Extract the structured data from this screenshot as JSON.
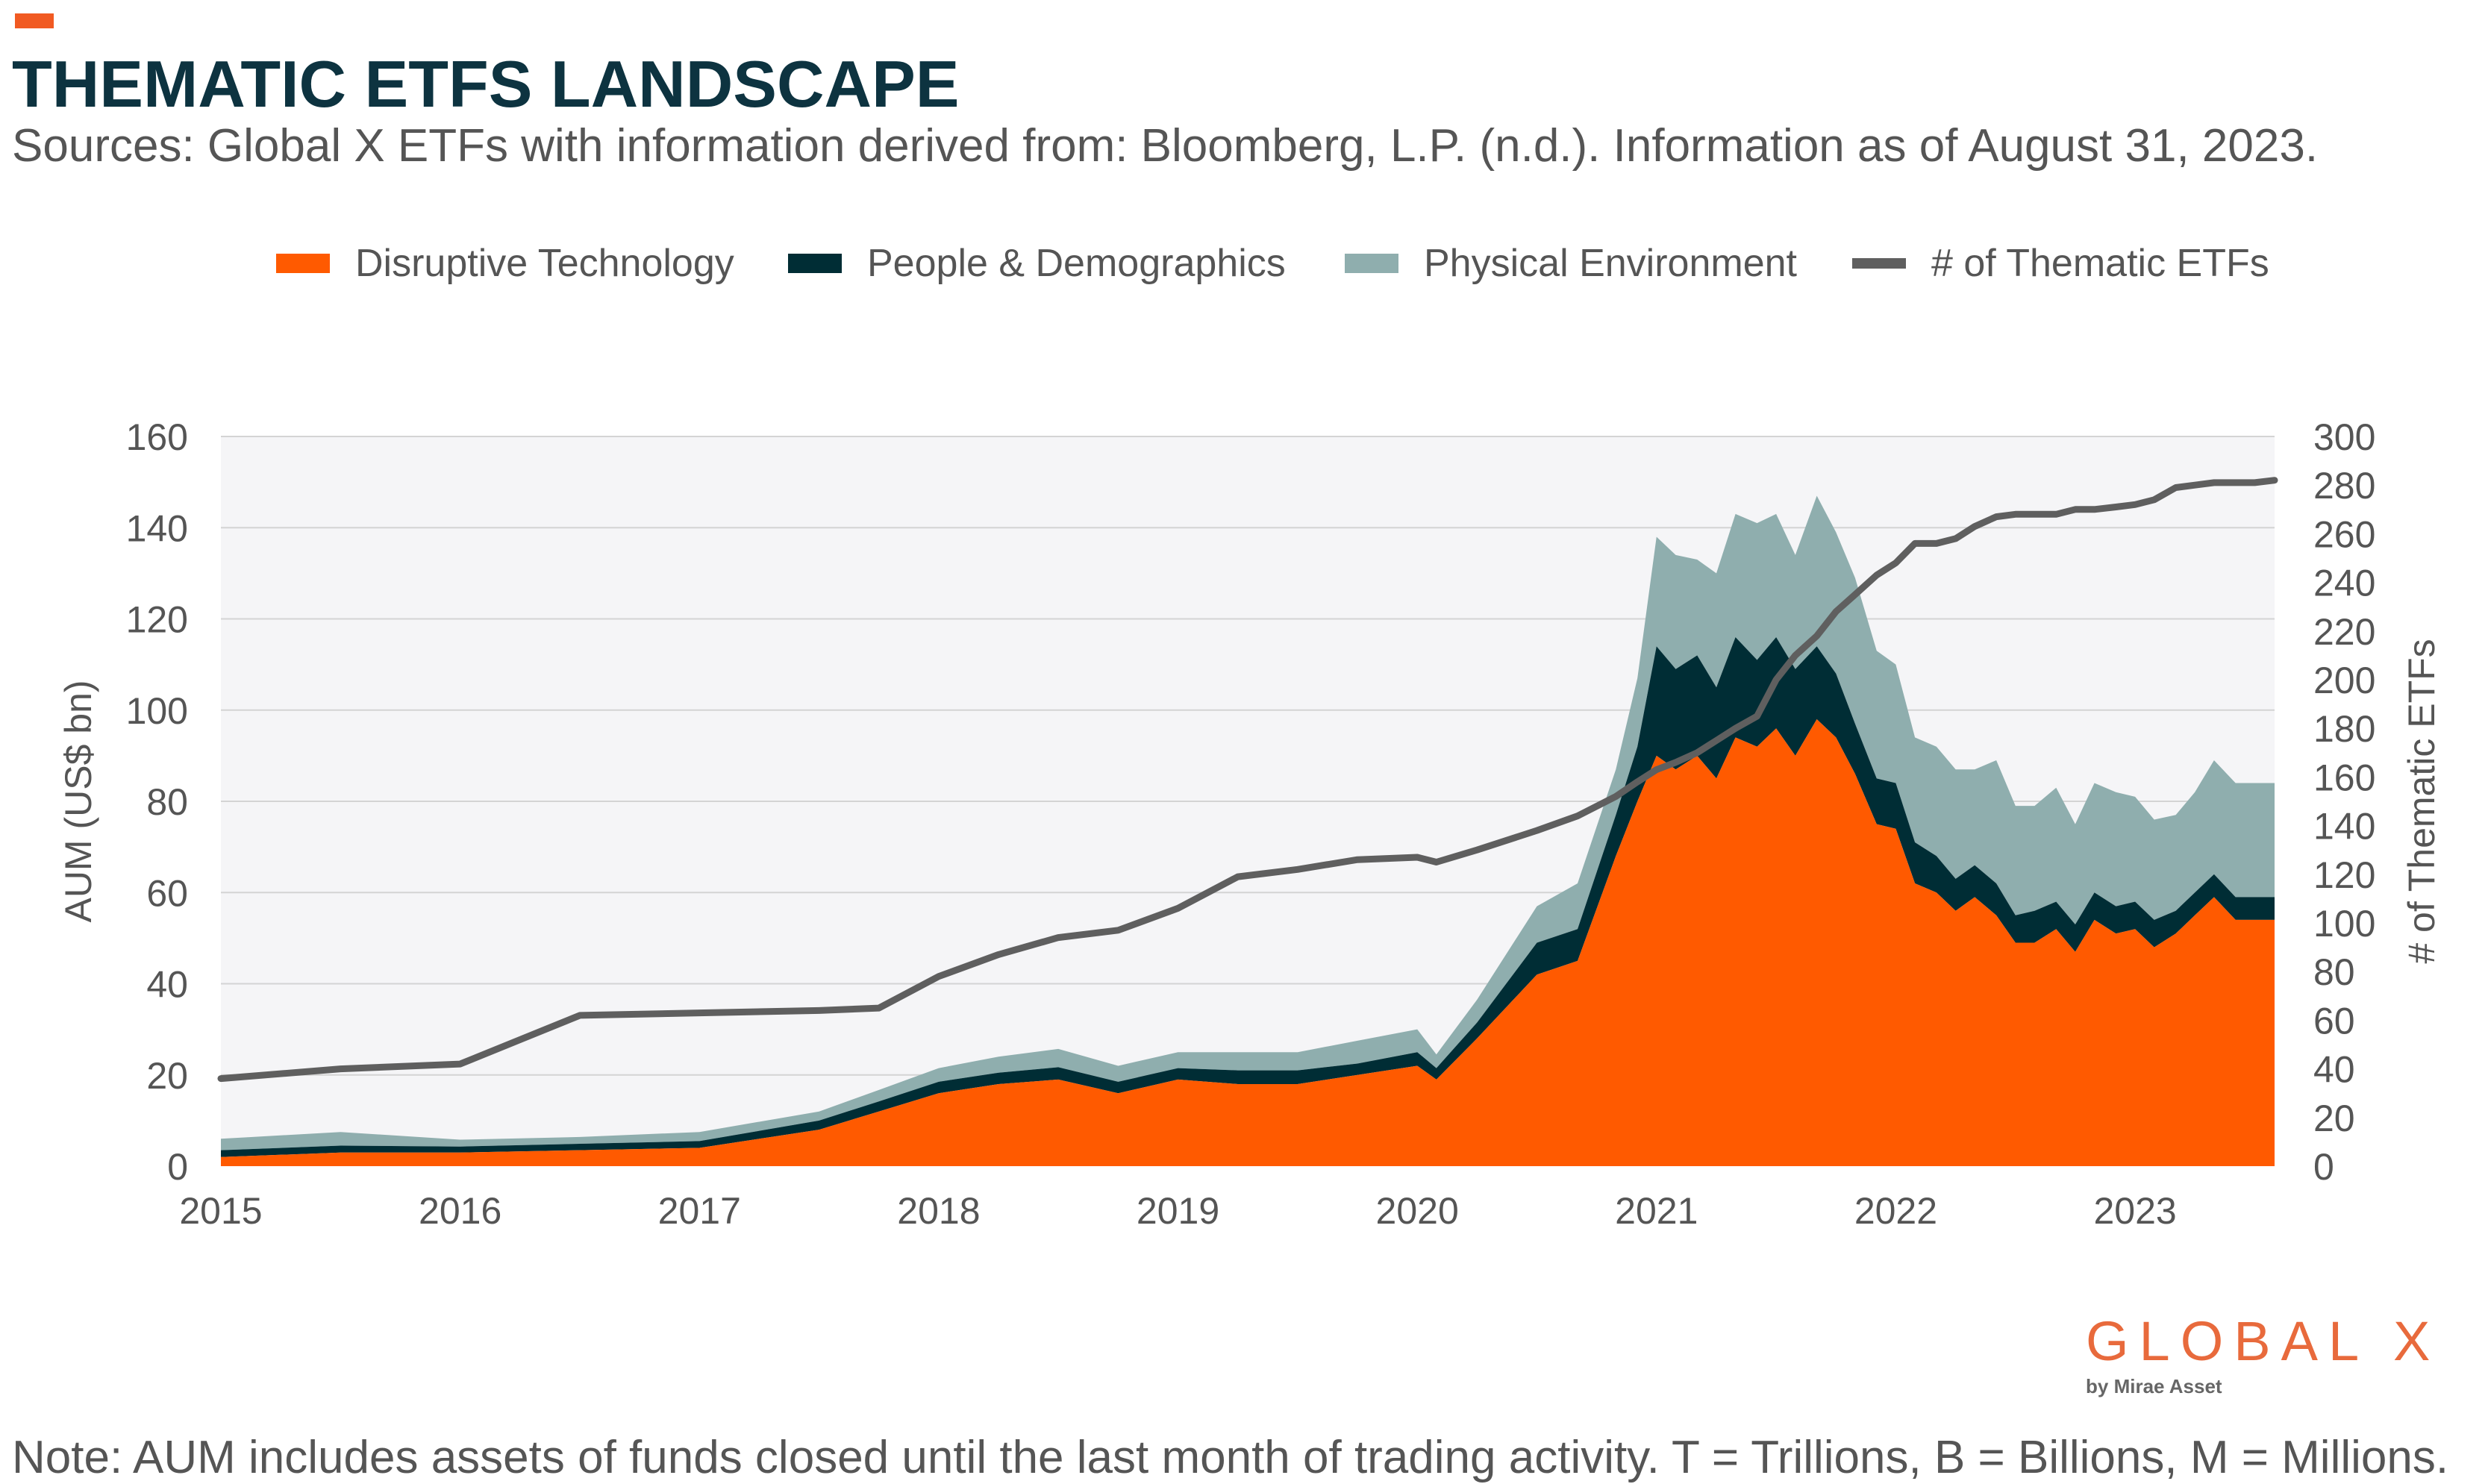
{
  "title": "THEMATIC ETFS LANDSCAPE",
  "subtitle": "Sources: Global X ETFs with information derived from: Bloomberg, L.P. (n.d.). Information as of August 31, 2023.",
  "note": "Note: AUM includes assets of funds closed until the last month of trading activity. T = Trillions, B = Billions, M = Millions.",
  "logo": {
    "name": "GLOBAL X",
    "tagline": "by Mirae Asset"
  },
  "colors": {
    "accent": "#f15a22",
    "disruptive": "#ff5a00",
    "people": "#002d35",
    "physical": "#8faeae",
    "count": "#5f5f5f",
    "title": "#0d3340"
  },
  "chart_data": {
    "type": "area",
    "legend": [
      "Disruptive Technology",
      "People & Demographics",
      "Physical Environment",
      "# of Thematic ETFs"
    ],
    "legend_position": "top",
    "grid": true,
    "x_ticks": [
      "2015",
      "2016",
      "2017",
      "2018",
      "2019",
      "2020",
      "2021",
      "2022",
      "2023"
    ],
    "x_range": [
      2015.0,
      2023.583
    ],
    "ylabel_left": "AUM (US$ bn)",
    "ylabel_right": "# of Thematic ETFs",
    "ylim_left": [
      0,
      160
    ],
    "ylim_right": [
      0,
      300
    ],
    "y_ticks_left": [
      "0",
      "20",
      "40",
      "60",
      "80",
      "100",
      "120",
      "140",
      "160"
    ],
    "y_ticks_right": [
      "0",
      "20",
      "40",
      "60",
      "80",
      "100",
      "120",
      "140",
      "160",
      "180",
      "200",
      "220",
      "240",
      "260",
      "280",
      "300"
    ],
    "x": [
      2015.0,
      2015.5,
      2016.0,
      2016.5,
      2017.0,
      2017.5,
      2017.75,
      2018.0,
      2018.25,
      2018.5,
      2018.75,
      2019.0,
      2019.25,
      2019.5,
      2019.75,
      2020.0,
      2020.08,
      2020.25,
      2020.5,
      2020.67,
      2020.83,
      2020.92,
      2021.0,
      2021.08,
      2021.17,
      2021.25,
      2021.33,
      2021.42,
      2021.5,
      2021.58,
      2021.67,
      2021.75,
      2021.83,
      2021.92,
      2022.0,
      2022.08,
      2022.17,
      2022.25,
      2022.33,
      2022.42,
      2022.5,
      2022.58,
      2022.67,
      2022.75,
      2022.83,
      2022.92,
      2023.0,
      2023.08,
      2023.17,
      2023.25,
      2023.33,
      2023.42,
      2023.5,
      2023.583
    ],
    "series": [
      {
        "name": "Disruptive Technology",
        "values": [
          2,
          3,
          3,
          3.5,
          4,
          8,
          12,
          16,
          18,
          19,
          16,
          19,
          18,
          18,
          20,
          22,
          19,
          28,
          42,
          45,
          68,
          80,
          90,
          87,
          90,
          85,
          94,
          92,
          96,
          90,
          98,
          94,
          86,
          75,
          74,
          62,
          60,
          56,
          59,
          55,
          49,
          49,
          52,
          47,
          54,
          51,
          52,
          48,
          51,
          55,
          59,
          54,
          54,
          54
        ]
      },
      {
        "name": "People & Demographics",
        "values": [
          1.5,
          1.5,
          1.3,
          1.4,
          1.5,
          2,
          2.2,
          2.5,
          2.5,
          2.7,
          2.5,
          2.5,
          3,
          3,
          2.5,
          3,
          2.5,
          3.5,
          7,
          7,
          9,
          12,
          24,
          22,
          22,
          20,
          22,
          19,
          20,
          19,
          16,
          14,
          11,
          10,
          10,
          9,
          8,
          7,
          7,
          7,
          6,
          7,
          6,
          6,
          6,
          6,
          6,
          6,
          5,
          5,
          5,
          5,
          5,
          5
        ]
      },
      {
        "name": "Physical Environment",
        "values": [
          2.5,
          3,
          1.5,
          1.5,
          2,
          2,
          2.5,
          3,
          3.5,
          4,
          3.5,
          3.5,
          4,
          4,
          5,
          5,
          3,
          5,
          8,
          10,
          10,
          15,
          24,
          25,
          21,
          25,
          27,
          30,
          27,
          25,
          33,
          31,
          32,
          28,
          26,
          23,
          24,
          24,
          21,
          27,
          24,
          23,
          25,
          22,
          24,
          25,
          23,
          22,
          21,
          22,
          25,
          25,
          25,
          25
        ]
      },
      {
        "name": "# of Thematic ETFs",
        "axis": "right",
        "values": [
          36,
          40,
          42,
          62,
          63,
          64,
          65,
          78,
          87,
          94,
          97,
          106,
          119,
          122,
          126,
          127,
          125,
          130,
          138,
          144,
          152,
          158,
          163,
          166,
          170,
          175,
          180,
          185,
          200,
          210,
          218,
          228,
          235,
          243,
          248,
          256,
          256,
          258,
          263,
          267,
          268,
          268,
          268,
          270,
          270,
          271,
          272,
          274,
          279,
          280,
          281,
          281,
          281,
          282
        ]
      }
    ]
  }
}
